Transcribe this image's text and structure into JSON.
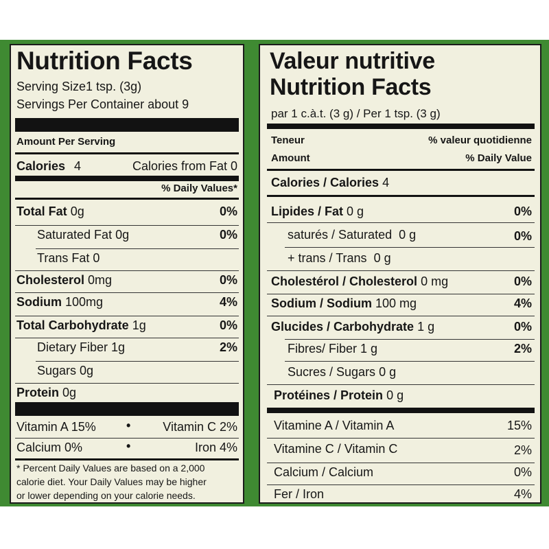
{
  "left": {
    "title": "Nutrition Facts",
    "serving_size": "Serving Size1 tsp. (3g)",
    "servings_per_container": "Servings Per Container about 9",
    "amount_per_serving": "Amount Per Serving",
    "calories_label": "Calories",
    "calories_value": "4",
    "calories_from_fat": "Calories from Fat 0",
    "daily_values_header": "% Daily Values*",
    "rows": [
      {
        "label": "Total Fat",
        "amount": "0g",
        "dv": "0%"
      },
      {
        "label": "Saturated Fat 0g",
        "dv": "0%"
      },
      {
        "label": "Trans Fat 0"
      },
      {
        "label": "Cholesterol",
        "amount": "0mg",
        "dv": "0%"
      },
      {
        "label": "Sodium",
        "amount": "100mg",
        "dv": "4%"
      },
      {
        "label": "Total Carbohydrate",
        "amount": "1g",
        "dv": "0%"
      },
      {
        "label": "Dietary Fiber 1g",
        "dv": "2%"
      },
      {
        "label": "Sugars 0g"
      },
      {
        "label": "Protein",
        "amount": "0g"
      }
    ],
    "vitamin_a": "Vitamin A 15%",
    "vitamin_c": "Vitamin C 2%",
    "calcium": "Calcium 0%",
    "iron": "Iron 4%",
    "bullet": "•",
    "footnote": [
      "* Percent Daily Values are based on a 2,000",
      "calorie diet.  Your Daily Values may be higher",
      "or lower depending on your calorie needs."
    ]
  },
  "right": {
    "title_fr": "Valeur nutritive",
    "title_en": "Nutrition Facts",
    "serving": "par 1 c.à.t. (3 g) / Per 1 tsp. (3 g)",
    "teneur": "Teneur",
    "amount": "Amount",
    "dv_fr": "% valeur quotidienne",
    "dv_en": "% Daily Value",
    "calories_label": "Calories / Calories",
    "calories_value": "4",
    "rows": [
      {
        "label": "Lipides / Fat",
        "amount": "0 g",
        "dv": "0%"
      },
      {
        "label": "saturés / Saturated",
        "amount": "0 g",
        "dv": "0%"
      },
      {
        "label": "+ trans / Trans",
        "amount": "0 g"
      },
      {
        "label": "Cholestérol / Cholesterol",
        "amount": "0 mg",
        "dv": "0%"
      },
      {
        "label": "Sodium / Sodium",
        "amount": "100 mg",
        "dv": "4%"
      },
      {
        "label": "Glucides / Carbohydrate",
        "amount": "1 g",
        "dv": "0%"
      },
      {
        "label": "Fibres/ Fiber",
        "amount": "1 g",
        "dv": "2%"
      },
      {
        "label": "Sucres / Sugars",
        "amount": "0 g"
      },
      {
        "label": "Protéines / Protein",
        "amount": "0 g"
      }
    ],
    "vitamins": [
      {
        "label": "Vitamine A / Vitamin A",
        "dv": "15%"
      },
      {
        "label": "Vitamine C / Vitamin C",
        "dv": "2%"
      },
      {
        "label": "Calcium / Calcium",
        "dv": "0%"
      },
      {
        "label": "Fer / Iron",
        "dv": "4%"
      }
    ]
  }
}
